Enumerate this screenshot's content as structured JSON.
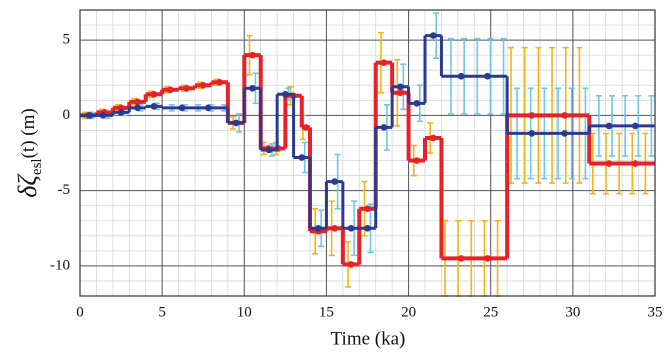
{
  "chart_data": {
    "type": "step",
    "x_label": "Time (ka)",
    "y_label": "δζ",
    "y_label_sub": "esl",
    "y_label_tail": "(t)  (m)",
    "xlim": [
      0,
      35
    ],
    "xticks": [
      0,
      5,
      10,
      15,
      20,
      25,
      30,
      35
    ],
    "ylim": [
      -12,
      7
    ],
    "yticks": [
      -10,
      -5,
      0,
      5
    ],
    "grid": true,
    "minor_grid_step": 1,
    "series": [
      {
        "color": "#e8202a",
        "error_color": "#f5b415",
        "x": [
          0,
          1,
          2,
          3,
          4,
          5,
          6,
          7,
          8,
          9,
          10,
          11,
          12.5,
          13.5,
          14,
          15,
          16,
          17,
          18,
          19,
          20,
          21,
          22,
          26,
          31
        ],
        "values": [
          0,
          0.2,
          0.5,
          0.9,
          1.4,
          1.7,
          1.8,
          2.0,
          2.2,
          -0.5,
          4.0,
          -2.2,
          1.3,
          -0.8,
          -7.7,
          -7.5,
          -9.9,
          -6.2,
          3.5,
          1.5,
          -3.0,
          -1.5,
          -9.5,
          0,
          -3.2
        ],
        "errors": [
          0.2,
          0.2,
          0.2,
          0.2,
          0.2,
          0.2,
          0.2,
          0.2,
          0.2,
          0.4,
          1.3,
          0.4,
          0.6,
          0.8,
          1.5,
          1.8,
          1.5,
          1.8,
          2.0,
          2.2,
          1.0,
          1.0,
          2.5,
          4.5,
          2.0
        ]
      },
      {
        "color": "#2b3990",
        "error_color": "#6ec6e8",
        "x": [
          0,
          2,
          3,
          4,
          5,
          9,
          10,
          11,
          12,
          13,
          14,
          15,
          16,
          17,
          18,
          19,
          20,
          21,
          22,
          26,
          31
        ],
        "values": [
          0,
          0.2,
          0.5,
          0.6,
          0.5,
          -0.5,
          1.8,
          -2.3,
          1.4,
          -2.8,
          -7.5,
          -4.4,
          -7.5,
          -7.5,
          -0.8,
          1.9,
          0.8,
          5.3,
          2.6,
          -1.2,
          -0.7
        ],
        "errors": [
          0.2,
          0.2,
          0.2,
          0.2,
          0.2,
          0.6,
          1.0,
          0.4,
          0.4,
          1.0,
          1.2,
          1.8,
          1.8,
          1.6,
          1.5,
          1.5,
          1.2,
          1.5,
          2.5,
          3.0,
          2.0
        ]
      }
    ]
  }
}
